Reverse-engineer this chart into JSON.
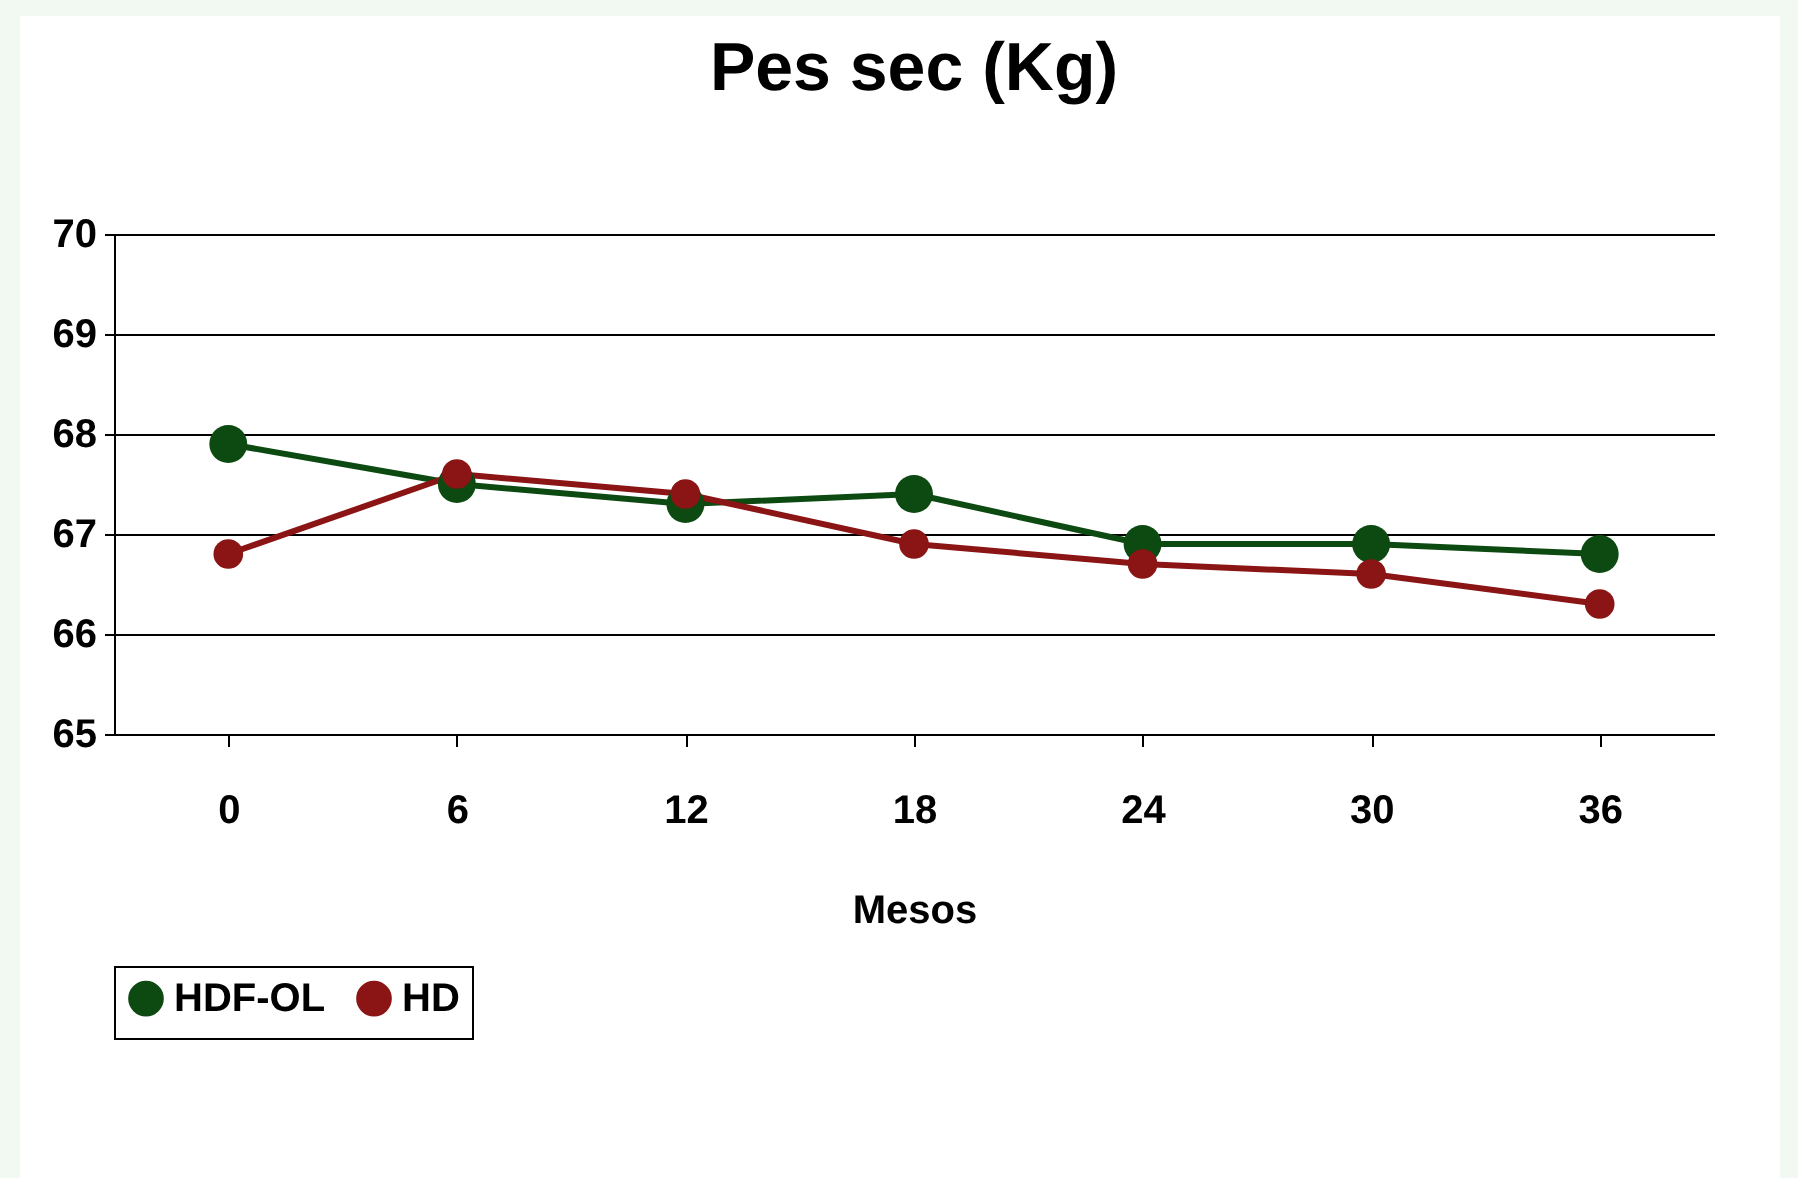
{
  "chart_data": {
    "type": "line",
    "title": "Pes sec (Kg)",
    "xlabel": "Mesos",
    "categories": [
      "0",
      "6",
      "12",
      "18",
      "24",
      "30",
      "36"
    ],
    "series": [
      {
        "name": "HDF-OL",
        "color": "#0d4a12",
        "values": [
          67.9,
          67.5,
          67.3,
          67.4,
          66.9,
          66.9,
          66.8
        ]
      },
      {
        "name": "HD",
        "color": "#8b1414",
        "values": [
          66.8,
          67.6,
          67.4,
          66.9,
          66.7,
          66.6,
          66.3
        ]
      }
    ],
    "ylim": [
      65,
      70
    ],
    "yticks": [
      65,
      66,
      67,
      68,
      69,
      70
    ],
    "grid": "y",
    "legend": "bottom",
    "marker": "circle"
  }
}
